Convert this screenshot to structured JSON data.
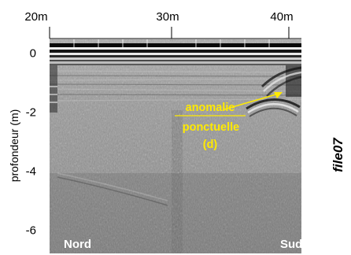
{
  "file_id": "file07",
  "axes": {
    "top_ticks": [
      "20m",
      "30m",
      "40m"
    ],
    "depth_ticks": [
      "0",
      "-2",
      "-4",
      "-6"
    ],
    "y_label": "profondeur (m)"
  },
  "labels": {
    "left_end": "Nord",
    "right_end": "Sud"
  },
  "annotation": {
    "line1": "anomalie",
    "line2": "ponctuelle",
    "line3": "(d)",
    "color": "#ffea00"
  },
  "colors": {
    "background": "#ffffff",
    "radargram_base": "#8a8a8a",
    "label_text": "#ffffff"
  }
}
